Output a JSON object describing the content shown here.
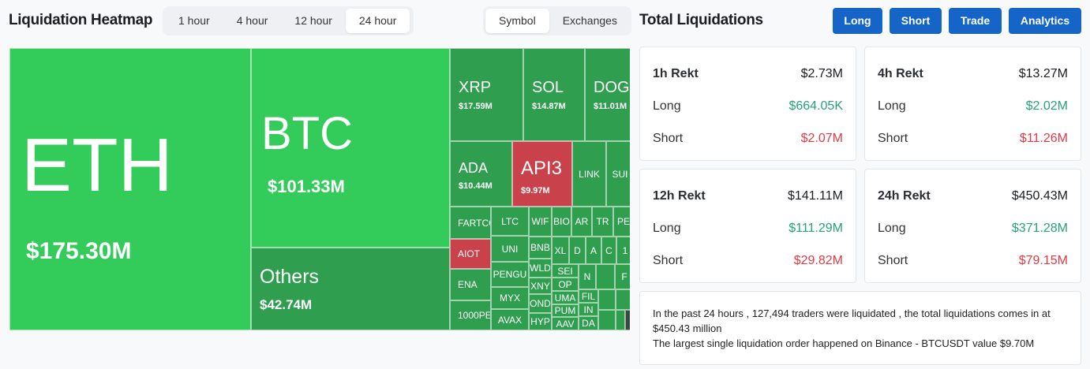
{
  "heatmap": {
    "title": "Liquidation Heatmap",
    "time_options": [
      "1 hour",
      "4 hour",
      "12 hour",
      "24 hour"
    ],
    "time_selected": "24 hour",
    "view_options": [
      "Symbol",
      "Exchanges"
    ],
    "view_selected": "Symbol",
    "tiles": {
      "eth": {
        "symbol": "ETH",
        "value": "$175.30M"
      },
      "btc": {
        "symbol": "BTC",
        "value": "$101.33M"
      },
      "others": {
        "symbol": "Others",
        "value": "$42.74M"
      },
      "xrp": {
        "symbol": "XRP",
        "value": "$17.59M"
      },
      "sol": {
        "symbol": "SOL",
        "value": "$14.87M"
      },
      "doge": {
        "symbol": "DOGE",
        "value": "$11.01M"
      },
      "ada": {
        "symbol": "ADA",
        "value": "$10.44M"
      },
      "api3": {
        "symbol": "API3",
        "value": "$9.97M"
      },
      "link": {
        "symbol": "LINK"
      },
      "sui": {
        "symbol": "SUI"
      },
      "fartco": {
        "symbol": "FARTCO"
      },
      "aiot": {
        "symbol": "AIOT"
      },
      "ena": {
        "symbol": "ENA"
      },
      "1000pe": {
        "symbol": "1000PE"
      },
      "ltc": {
        "symbol": "LTC"
      },
      "uni": {
        "symbol": "UNI"
      },
      "pengu": {
        "symbol": "PENGU"
      },
      "myx": {
        "symbol": "MYX"
      },
      "avax": {
        "symbol": "AVAX"
      },
      "wif": {
        "symbol": "WIF"
      },
      "bnb": {
        "symbol": "BNB"
      },
      "wld": {
        "symbol": "WLD"
      },
      "xny": {
        "symbol": "XNY"
      },
      "ond": {
        "symbol": "OND"
      },
      "hyp": {
        "symbol": "HYP"
      },
      "bi": {
        "symbol": "BIO"
      },
      "ar": {
        "symbol": "AR"
      },
      "tr": {
        "symbol": "TR"
      },
      "pe": {
        "symbol": "PE"
      },
      "xl": {
        "symbol": "XL"
      },
      "d": {
        "symbol": "D"
      },
      "a": {
        "symbol": "A"
      },
      "c": {
        "symbol": "C"
      },
      "one": {
        "symbol": "1"
      },
      "sei": {
        "symbol": "SEI"
      },
      "op": {
        "symbol": "OP"
      },
      "uma": {
        "symbol": "UMA"
      },
      "pum": {
        "symbol": "PUM"
      },
      "aav": {
        "symbol": "AAV"
      },
      "n": {
        "symbol": "N"
      },
      "f": {
        "symbol": "F"
      },
      "fi": {
        "symbol": "FIL"
      },
      "in": {
        "symbol": "IN"
      },
      "da": {
        "symbol": "DA"
      }
    }
  },
  "totals": {
    "title": "Total Liquidations",
    "buttons": [
      "Long",
      "Short",
      "Trade",
      "Analytics"
    ],
    "cards": [
      {
        "period": "1h Rekt",
        "total": "$2.73M",
        "long": "$664.05K",
        "short": "$2.07M"
      },
      {
        "period": "4h Rekt",
        "total": "$13.27M",
        "long": "$2.02M",
        "short": "$11.26M"
      },
      {
        "period": "12h Rekt",
        "total": "$141.11M",
        "long": "$111.29M",
        "short": "$29.82M"
      },
      {
        "period": "24h Rekt",
        "total": "$450.43M",
        "long": "$371.28M",
        "short": "$79.15M"
      }
    ],
    "long_label": "Long",
    "short_label": "Short",
    "summary_line1": "In the past 24 hours , 127,494 traders were liquidated , the total liquidations comes in at $450.43 million",
    "summary_line2": "The largest single liquidation order happened on Binance - BTCUSDT value $9.70M"
  },
  "colors": {
    "up_bright": "#33cc5a",
    "up": "#2f9e4f",
    "down": "#c9414a",
    "accent": "#1565c8",
    "green_text": "#26a17b",
    "red_text": "#e23a45"
  }
}
